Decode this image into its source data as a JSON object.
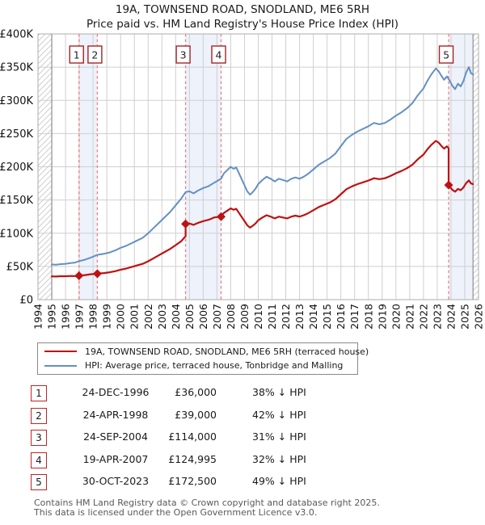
{
  "title": {
    "line1": "19A, TOWNSEND ROAD, SNODLAND, ME6 5RH",
    "line2": "Price paid vs. HM Land Registry's House Price Index (HPI)"
  },
  "legend": {
    "property_label": "19A, TOWNSEND ROAD, SNODLAND, ME6 5RH (terraced house)",
    "hpi_label": "HPI: Average price, terraced house, Tonbridge and Malling"
  },
  "table": {
    "rows": [
      {
        "num": "1",
        "date": "24-DEC-1996",
        "price": "£36,000",
        "pct": "38% ↓ HPI"
      },
      {
        "num": "2",
        "date": "24-APR-1998",
        "price": "£39,000",
        "pct": "42% ↓ HPI"
      },
      {
        "num": "3",
        "date": "24-SEP-2004",
        "price": "£114,000",
        "pct": "31% ↓ HPI"
      },
      {
        "num": "4",
        "date": "19-APR-2007",
        "price": "£124,995",
        "pct": "32% ↓ HPI"
      },
      {
        "num": "5",
        "date": "30-OCT-2023",
        "price": "£172,500",
        "pct": "49% ↓ HPI"
      }
    ]
  },
  "footer": {
    "line1": "Contains HM Land Registry data © Crown copyright and database right 2025.",
    "line2": "This data is licensed under the Open Government Licence v3.0."
  },
  "colors": {
    "property_line": "#bf1111",
    "hpi_line": "#648fc4",
    "sale_dash": "#f08080",
    "band_fill": "#edf2fb",
    "grid": "#cfcfcf",
    "frame": "#adadad",
    "edge_line": "#8f8f8f",
    "hatch_line": "#c9c9c9",
    "marker_box_border": "#a42424",
    "tick_text": "#111111"
  },
  "chart_data": {
    "type": "line",
    "title": "Price paid vs. HM Land Registry's House Price Index (HPI)",
    "xlim": [
      1994,
      2026
    ],
    "ylim": [
      0,
      400
    ],
    "x_ticks": [
      "1994",
      "1995",
      "1996",
      "1997",
      "1998",
      "1999",
      "2000",
      "2001",
      "2002",
      "2003",
      "2004",
      "2005",
      "2006",
      "2007",
      "2008",
      "2009",
      "2010",
      "2011",
      "2012",
      "2013",
      "2014",
      "2015",
      "2016",
      "2017",
      "2018",
      "2019",
      "2020",
      "2021",
      "2022",
      "2023",
      "2024",
      "2025",
      "2026"
    ],
    "y_ticks": [
      [
        0,
        "£0"
      ],
      [
        50,
        "£50K"
      ],
      [
        100,
        "£100K"
      ],
      [
        150,
        "£150K"
      ],
      [
        200,
        "£200K"
      ],
      [
        250,
        "£250K"
      ],
      [
        300,
        "£300K"
      ],
      [
        350,
        "£350K"
      ],
      [
        400,
        "£400K"
      ]
    ],
    "units": "GBP thousands",
    "data_start": 1995,
    "data_end": 2025.6,
    "hatch_regions": [
      [
        1994,
        1995
      ],
      [
        2025.6,
        2026
      ]
    ],
    "sale_bands": [
      [
        1996.98,
        1998.31
      ],
      [
        2004.72,
        2007.3
      ],
      [
        2023.83,
        2025.6
      ]
    ],
    "sales": [
      {
        "label": "1",
        "year": 1996.98,
        "price_k": 36
      },
      {
        "label": "2",
        "year": 1998.31,
        "price_k": 39
      },
      {
        "label": "3",
        "year": 2004.72,
        "price_k": 114
      },
      {
        "label": "4",
        "year": 2007.3,
        "price_k": 124.995
      },
      {
        "label": "5",
        "year": 2023.83,
        "price_k": 172.5
      }
    ],
    "series": [
      {
        "name": "19A, TOWNSEND ROAD, SNODLAND, ME6 5RH (terraced house)",
        "color": "#bf1111",
        "width": 2.2,
        "points": [
          [
            1995,
            35
          ],
          [
            1995.3,
            34.8
          ],
          [
            1995.6,
            35.2
          ],
          [
            1996,
            35.3
          ],
          [
            1996.4,
            35.6
          ],
          [
            1996.7,
            35.5
          ],
          [
            1996.98,
            36
          ],
          [
            1997.4,
            37
          ],
          [
            1997.8,
            38.2
          ],
          [
            1998.31,
            39
          ],
          [
            1998.8,
            40
          ],
          [
            1999.2,
            41.2
          ],
          [
            1999.6,
            42.8
          ],
          [
            2000,
            45.1
          ],
          [
            2000.4,
            46.8
          ],
          [
            2000.8,
            49.1
          ],
          [
            2001.2,
            51.5
          ],
          [
            2001.6,
            53.8
          ],
          [
            2002,
            57.8
          ],
          [
            2002.4,
            62.4
          ],
          [
            2002.8,
            67.1
          ],
          [
            2003.2,
            71.7
          ],
          [
            2003.6,
            76.3
          ],
          [
            2004,
            82.1
          ],
          [
            2004.4,
            87.9
          ],
          [
            2004.72,
            95.5
          ],
          [
            2004.72,
            114
          ],
          [
            2005,
            114.7
          ],
          [
            2005.3,
            112.6
          ],
          [
            2005.6,
            115.4
          ],
          [
            2006,
            118.2
          ],
          [
            2006.4,
            120.3
          ],
          [
            2006.8,
            123.8
          ],
          [
            2007.3,
            125
          ],
          [
            2007.5,
            130.5
          ],
          [
            2007.8,
            134.6
          ],
          [
            2008,
            137.4
          ],
          [
            2008.2,
            135.3
          ],
          [
            2008.4,
            136.7
          ],
          [
            2008.6,
            130.5
          ],
          [
            2008.8,
            124.3
          ],
          [
            2009,
            118.2
          ],
          [
            2009.2,
            112
          ],
          [
            2009.4,
            108.5
          ],
          [
            2009.6,
            111.3
          ],
          [
            2009.8,
            114.7
          ],
          [
            2010,
            119.5
          ],
          [
            2010.3,
            123.7
          ],
          [
            2010.6,
            127.1
          ],
          [
            2010.9,
            125
          ],
          [
            2011.2,
            122.3
          ],
          [
            2011.5,
            125
          ],
          [
            2011.8,
            123.7
          ],
          [
            2012.1,
            122.3
          ],
          [
            2012.4,
            125
          ],
          [
            2012.7,
            126.4
          ],
          [
            2013,
            125
          ],
          [
            2013.3,
            127.1
          ],
          [
            2013.6,
            129.8
          ],
          [
            2014,
            134.6
          ],
          [
            2014.4,
            139.4
          ],
          [
            2014.8,
            142.9
          ],
          [
            2015.2,
            146.3
          ],
          [
            2015.6,
            151.1
          ],
          [
            2016,
            158.7
          ],
          [
            2016.4,
            166.2
          ],
          [
            2016.8,
            170.4
          ],
          [
            2017.2,
            173.8
          ],
          [
            2017.6,
            176.5
          ],
          [
            2018,
            179.3
          ],
          [
            2018.4,
            182.7
          ],
          [
            2018.8,
            181.4
          ],
          [
            2019.2,
            182.7
          ],
          [
            2019.6,
            186.2
          ],
          [
            2020,
            190.3
          ],
          [
            2020.4,
            193.7
          ],
          [
            2020.8,
            197.8
          ],
          [
            2021.2,
            203.3
          ],
          [
            2021.6,
            211.6
          ],
          [
            2022,
            218.4
          ],
          [
            2022.3,
            226.7
          ],
          [
            2022.6,
            233.5
          ],
          [
            2022.9,
            239
          ],
          [
            2023.1,
            236.3
          ],
          [
            2023.3,
            231.5
          ],
          [
            2023.5,
            227.3
          ],
          [
            2023.7,
            230.8
          ],
          [
            2023.83,
            228
          ],
          [
            2023.83,
            172.5
          ],
          [
            2024.1,
            165.2
          ],
          [
            2024.3,
            162.6
          ],
          [
            2024.5,
            166.7
          ],
          [
            2024.7,
            164.7
          ],
          [
            2024.9,
            168.8
          ],
          [
            2025.1,
            175.4
          ],
          [
            2025.3,
            179.6
          ],
          [
            2025.45,
            174.9
          ],
          [
            2025.6,
            173.9
          ]
        ]
      },
      {
        "name": "HPI: Average price, terraced house, Tonbridge and Malling",
        "color": "#648fc4",
        "width": 2,
        "points": [
          [
            1995,
            53
          ],
          [
            1995.3,
            52.6
          ],
          [
            1995.6,
            53.4
          ],
          [
            1996,
            54
          ],
          [
            1996.4,
            55.2
          ],
          [
            1996.7,
            55.8
          ],
          [
            1996.98,
            58
          ],
          [
            1997.4,
            60
          ],
          [
            1997.8,
            63
          ],
          [
            1998.1,
            65.5
          ],
          [
            1998.31,
            67.5
          ],
          [
            1998.8,
            69
          ],
          [
            1999.2,
            71
          ],
          [
            1999.6,
            74
          ],
          [
            2000,
            78
          ],
          [
            2000.4,
            81
          ],
          [
            2000.8,
            85
          ],
          [
            2001.2,
            89
          ],
          [
            2001.6,
            93
          ],
          [
            2002,
            100
          ],
          [
            2002.4,
            108
          ],
          [
            2002.8,
            116
          ],
          [
            2003.2,
            124
          ],
          [
            2003.6,
            132
          ],
          [
            2004,
            142
          ],
          [
            2004.4,
            152
          ],
          [
            2004.72,
            162
          ],
          [
            2005,
            163
          ],
          [
            2005.3,
            160
          ],
          [
            2005.6,
            164
          ],
          [
            2006,
            168
          ],
          [
            2006.4,
            171
          ],
          [
            2006.8,
            176
          ],
          [
            2007.3,
            182
          ],
          [
            2007.5,
            190
          ],
          [
            2007.8,
            196
          ],
          [
            2008,
            200
          ],
          [
            2008.2,
            197
          ],
          [
            2008.4,
            199
          ],
          [
            2008.6,
            190
          ],
          [
            2008.8,
            181
          ],
          [
            2009,
            172
          ],
          [
            2009.2,
            163
          ],
          [
            2009.4,
            158
          ],
          [
            2009.6,
            162
          ],
          [
            2009.8,
            167
          ],
          [
            2010,
            174
          ],
          [
            2010.3,
            180
          ],
          [
            2010.6,
            185
          ],
          [
            2010.9,
            182
          ],
          [
            2011.2,
            178
          ],
          [
            2011.5,
            182
          ],
          [
            2011.8,
            180
          ],
          [
            2012.1,
            178
          ],
          [
            2012.4,
            182
          ],
          [
            2012.7,
            184
          ],
          [
            2013,
            182
          ],
          [
            2013.3,
            185
          ],
          [
            2013.6,
            189
          ],
          [
            2014,
            196
          ],
          [
            2014.4,
            203
          ],
          [
            2014.8,
            208
          ],
          [
            2015.2,
            213
          ],
          [
            2015.6,
            220
          ],
          [
            2016,
            231
          ],
          [
            2016.4,
            242
          ],
          [
            2016.8,
            248
          ],
          [
            2017.2,
            253
          ],
          [
            2017.6,
            257
          ],
          [
            2018,
            261
          ],
          [
            2018.4,
            266
          ],
          [
            2018.8,
            264
          ],
          [
            2019.2,
            266
          ],
          [
            2019.6,
            271
          ],
          [
            2020,
            277
          ],
          [
            2020.4,
            282
          ],
          [
            2020.8,
            288
          ],
          [
            2021.2,
            296
          ],
          [
            2021.6,
            308
          ],
          [
            2022,
            318
          ],
          [
            2022.3,
            330
          ],
          [
            2022.6,
            340
          ],
          [
            2022.9,
            348
          ],
          [
            2023.1,
            344
          ],
          [
            2023.3,
            337
          ],
          [
            2023.5,
            331
          ],
          [
            2023.7,
            336
          ],
          [
            2023.9,
            330
          ],
          [
            2024.1,
            322
          ],
          [
            2024.3,
            317
          ],
          [
            2024.5,
            325
          ],
          [
            2024.7,
            321
          ],
          [
            2024.9,
            329
          ],
          [
            2025.1,
            342
          ],
          [
            2025.3,
            350
          ],
          [
            2025.45,
            341
          ],
          [
            2025.6,
            339
          ]
        ]
      }
    ]
  }
}
